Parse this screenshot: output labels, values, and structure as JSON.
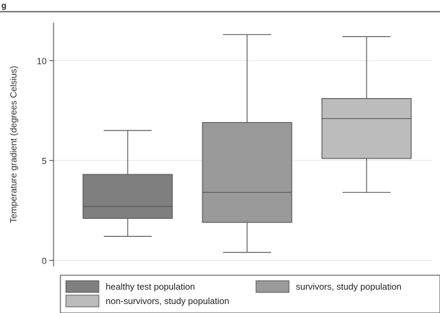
{
  "figure_label": "g",
  "chart_data": {
    "type": "box",
    "ylabel": "Temperature gradient (degrees Celsius)",
    "ylim": [
      -0.3,
      11.9
    ],
    "yticks": [
      0,
      5,
      10
    ],
    "grid": true,
    "legend_position": "bottom",
    "series": [
      {
        "name": "healthy test population",
        "color": "#7f7f7f",
        "whisker_low": 1.2,
        "q1": 2.1,
        "median": 2.7,
        "q3": 4.3,
        "whisker_high": 6.5
      },
      {
        "name": "survivors, study population",
        "color": "#9a9a9a",
        "whisker_low": 0.4,
        "q1": 1.9,
        "median": 3.4,
        "q3": 6.9,
        "whisker_high": 11.3
      },
      {
        "name": "non-survivors, study population",
        "color": "#bcbcbc",
        "whisker_low": 3.4,
        "q1": 5.1,
        "median": 7.1,
        "q3": 8.1,
        "whisker_high": 11.2
      }
    ]
  }
}
